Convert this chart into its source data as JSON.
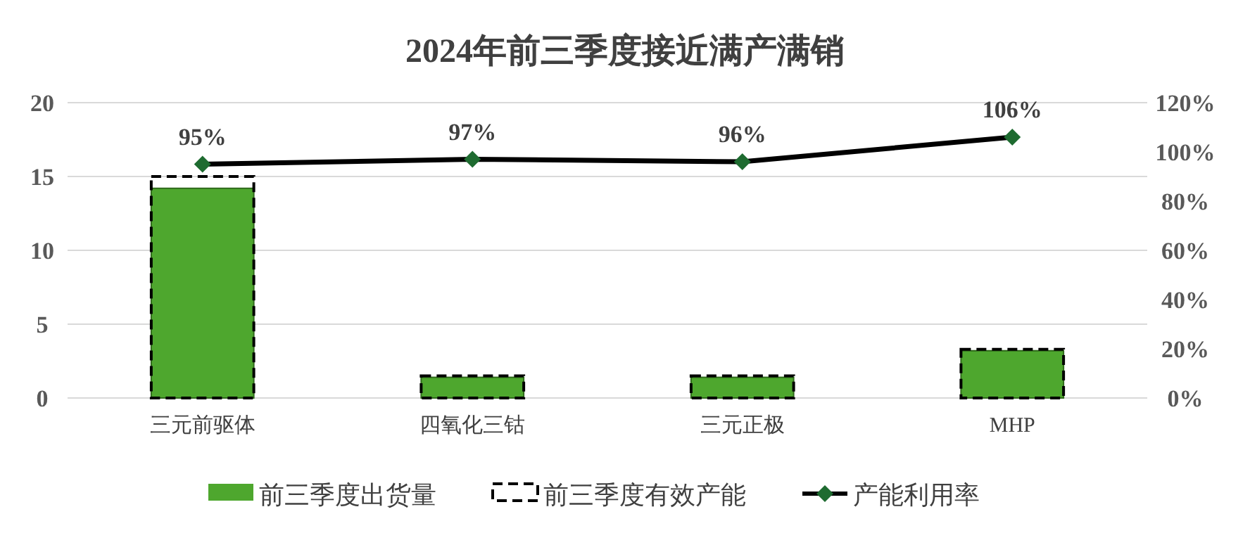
{
  "chart_data": {
    "type": "bar",
    "title": "2024年前三季度接近满产满销",
    "categories": [
      "三元前驱体",
      "四氧化三钴",
      "三元正极",
      "MHP"
    ],
    "series": [
      {
        "name": "前三季度出货量",
        "color": "#4ea72e",
        "values": [
          14.2,
          1.4,
          1.4,
          3.2
        ]
      },
      {
        "name": "前三季度有效产能",
        "color": "#000000",
        "line_style": "dashed",
        "values": [
          15,
          1.5,
          1.5,
          3.3
        ]
      },
      {
        "name": "产能利用率",
        "type": "line",
        "axis": "y2",
        "color": "#000000",
        "marker": "diamond",
        "values": [
          95,
          97,
          96,
          106
        ],
        "value_labels": [
          "95%",
          "97%",
          "96%",
          "106%"
        ]
      }
    ],
    "ylim": [
      0,
      20
    ],
    "yticks": [
      0,
      5,
      10,
      15,
      20
    ],
    "y2lim": [
      0,
      120
    ],
    "y2ticks": [
      {
        "value": 0,
        "label": "0%"
      },
      {
        "value": 20,
        "label": "20%"
      },
      {
        "value": 40,
        "label": "40%"
      },
      {
        "value": 60,
        "label": "60%"
      },
      {
        "value": 80,
        "label": "80%"
      },
      {
        "value": 100,
        "label": "100%"
      },
      {
        "value": 120,
        "label": "120%"
      }
    ],
    "grid": "y",
    "legend": "bottom"
  }
}
